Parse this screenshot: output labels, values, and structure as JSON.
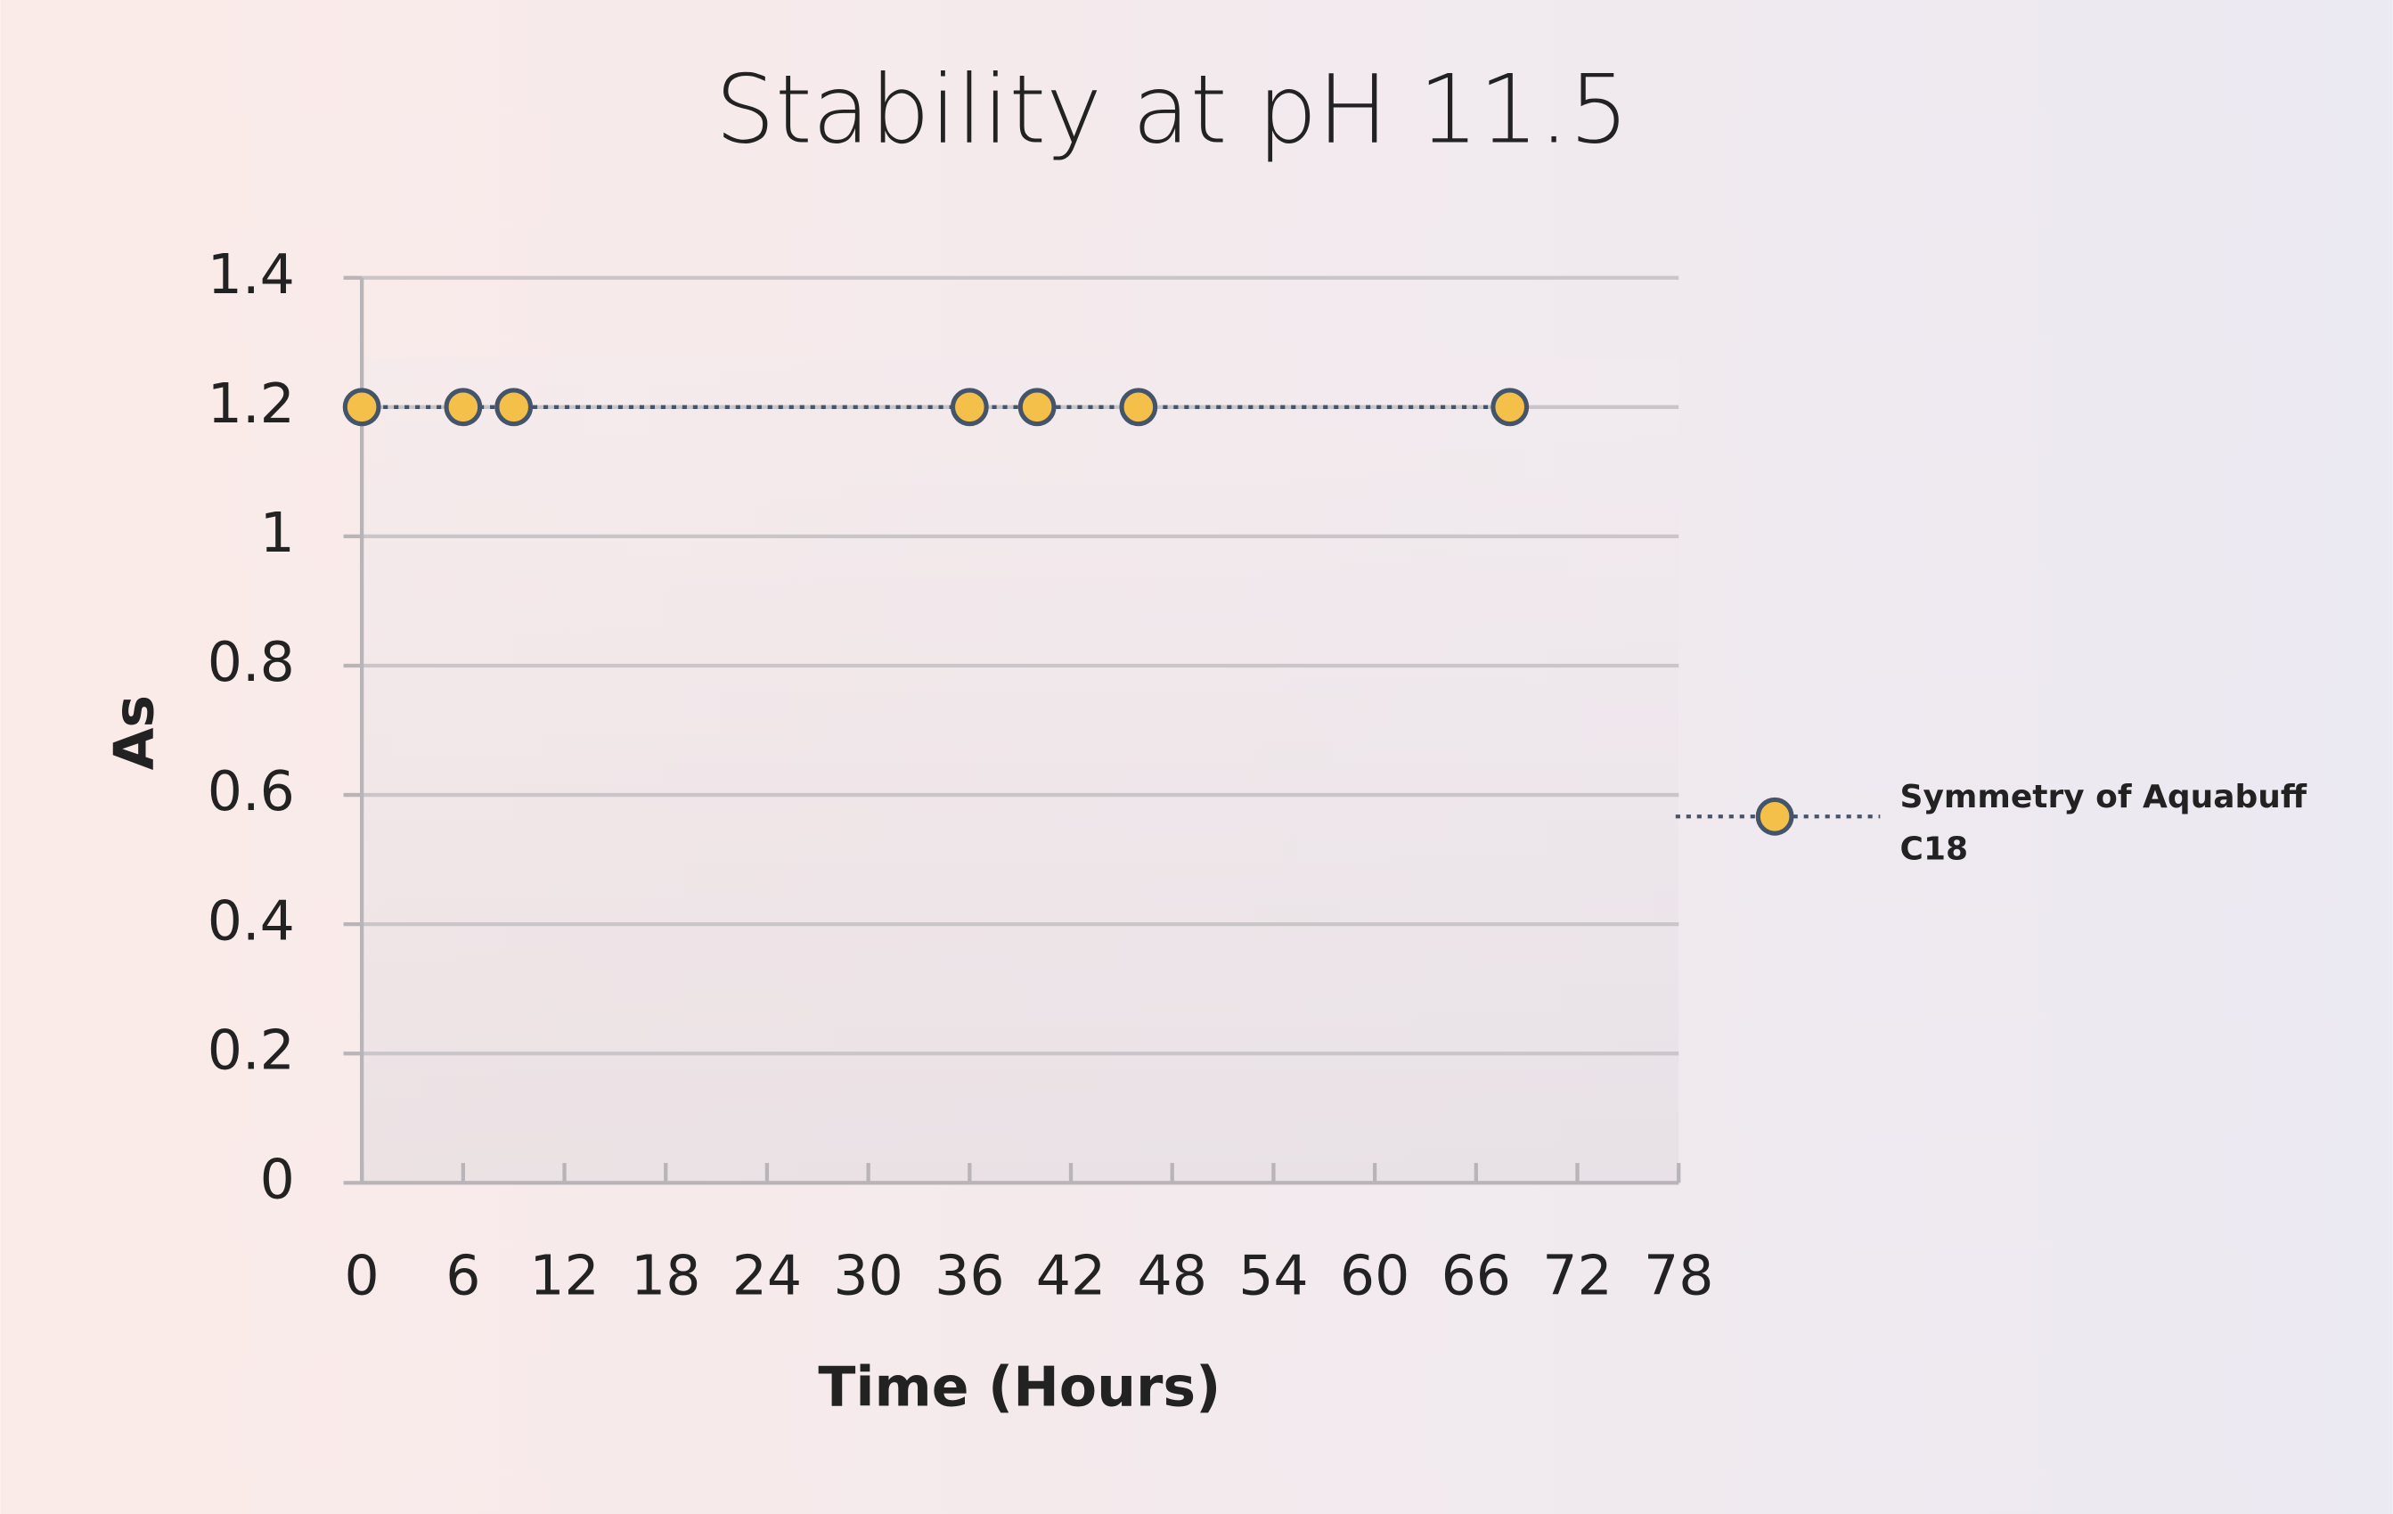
{
  "chart_data": {
    "type": "line",
    "title": "Stability at pH 11.5",
    "x_label": "Time (Hours)",
    "y_label": "As",
    "x": [
      0,
      6,
      9,
      36,
      40,
      46,
      68
    ],
    "series": [
      {
        "name": "Symmetry of Aquabuff C18",
        "color": "#f5c04a",
        "edge_color": "#44546a",
        "values": [
          1.2,
          1.2,
          1.2,
          1.2,
          1.2,
          1.2,
          1.2
        ]
      }
    ],
    "xlim": [
      0,
      78
    ],
    "xticks": [
      0,
      6,
      12,
      18,
      24,
      30,
      36,
      42,
      48,
      54,
      60,
      66,
      72,
      78
    ],
    "ylim": [
      0,
      1.4
    ],
    "yticks": [
      0,
      0.2,
      0.4,
      0.6,
      0.8,
      1,
      1.2,
      1.4
    ],
    "grid": true,
    "legend": "right"
  }
}
